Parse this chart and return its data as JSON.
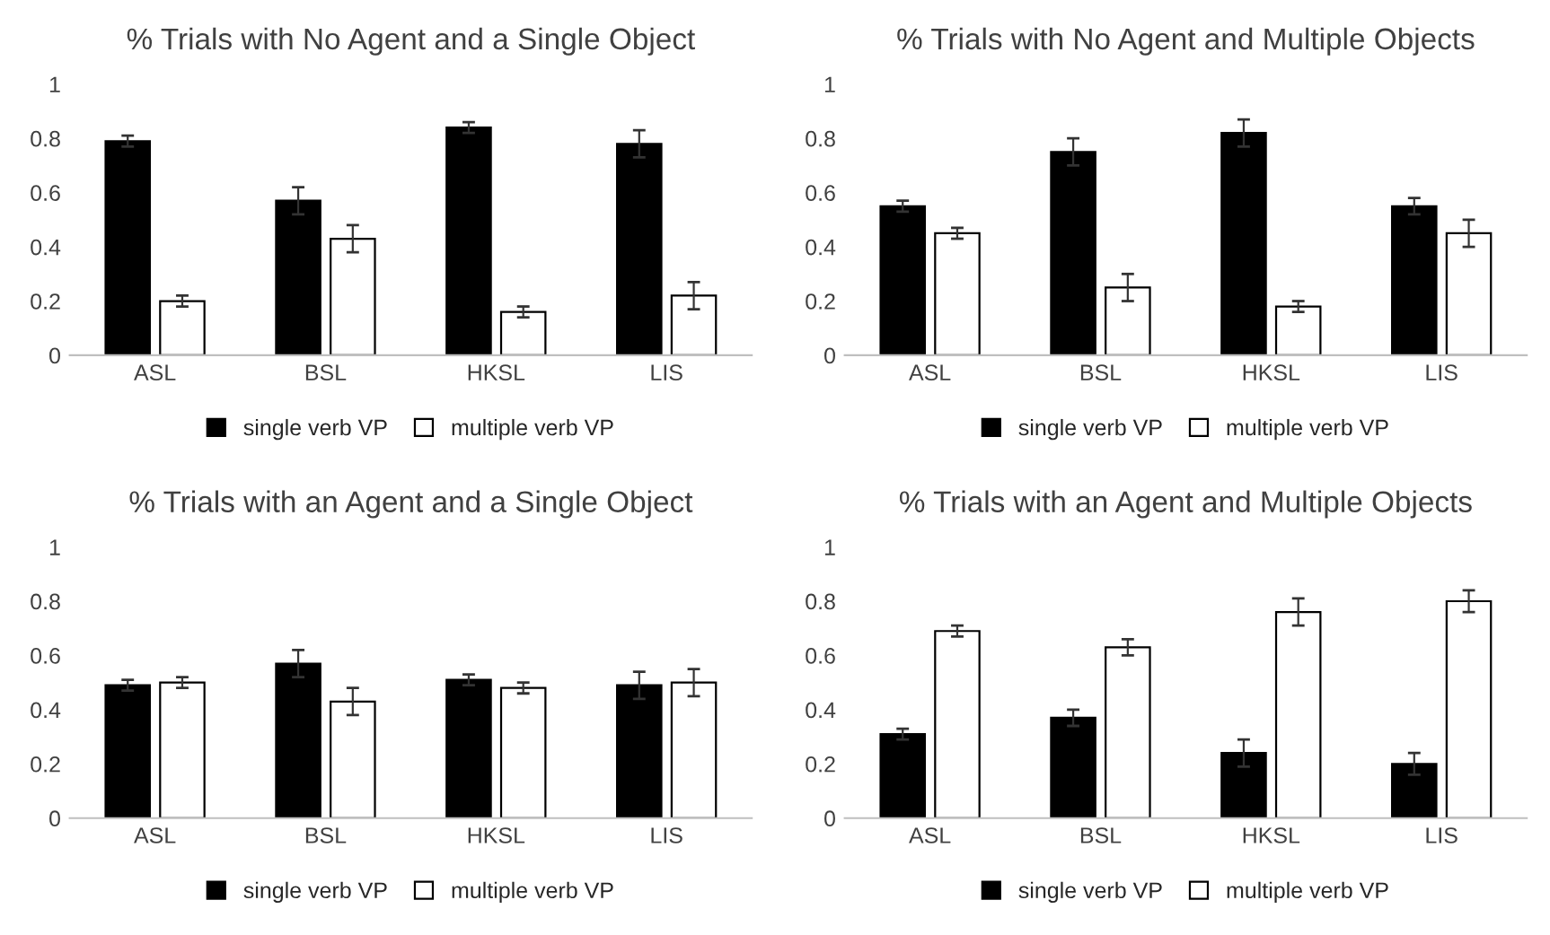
{
  "chart_data": [
    {
      "type": "bar",
      "title": "% Trials with No Agent and a Single Object",
      "categories": [
        "ASL",
        "BSL",
        "HKSL",
        "LIS"
      ],
      "ylim": [
        0,
        1
      ],
      "yticks": [
        0,
        0.2,
        0.4,
        0.6,
        0.8,
        1
      ],
      "grid": false,
      "legend": "bottom",
      "series": [
        {
          "name": "single verb VP",
          "color": "#000000",
          "values": [
            0.79,
            0.57,
            0.84,
            0.78
          ],
          "errors": [
            0.02,
            0.05,
            0.02,
            0.05
          ]
        },
        {
          "name": "multiple verb VP",
          "color": "#ffffff",
          "values": [
            0.2,
            0.43,
            0.16,
            0.22
          ],
          "errors": [
            0.02,
            0.05,
            0.02,
            0.05
          ]
        }
      ]
    },
    {
      "type": "bar",
      "title": "% Trials with No Agent and Multiple Objects",
      "categories": [
        "ASL",
        "BSL",
        "HKSL",
        "LIS"
      ],
      "ylim": [
        0,
        1
      ],
      "yticks": [
        0,
        0.2,
        0.4,
        0.6,
        0.8,
        1
      ],
      "grid": false,
      "legend": "bottom",
      "series": [
        {
          "name": "single verb VP",
          "color": "#000000",
          "values": [
            0.55,
            0.75,
            0.82,
            0.55
          ],
          "errors": [
            0.02,
            0.05,
            0.05,
            0.03
          ]
        },
        {
          "name": "multiple verb VP",
          "color": "#ffffff",
          "values": [
            0.45,
            0.25,
            0.18,
            0.45
          ],
          "errors": [
            0.02,
            0.05,
            0.02,
            0.05
          ]
        }
      ]
    },
    {
      "type": "bar",
      "title": "% Trials with an Agent and a Single Object",
      "categories": [
        "ASL",
        "BSL",
        "HKSL",
        "LIS"
      ],
      "ylim": [
        0,
        1
      ],
      "yticks": [
        0,
        0.2,
        0.4,
        0.6,
        0.8,
        1
      ],
      "grid": false,
      "legend": "bottom",
      "series": [
        {
          "name": "single verb VP",
          "color": "#000000",
          "values": [
            0.49,
            0.57,
            0.51,
            0.49
          ],
          "errors": [
            0.02,
            0.05,
            0.02,
            0.05
          ]
        },
        {
          "name": "multiple verb VP",
          "color": "#ffffff",
          "values": [
            0.5,
            0.43,
            0.48,
            0.5
          ],
          "errors": [
            0.02,
            0.05,
            0.02,
            0.05
          ]
        }
      ]
    },
    {
      "type": "bar",
      "title": "% Trials with an Agent and Multiple Objects",
      "categories": [
        "ASL",
        "BSL",
        "HKSL",
        "LIS"
      ],
      "ylim": [
        0,
        1
      ],
      "yticks": [
        0,
        0.2,
        0.4,
        0.6,
        0.8,
        1
      ],
      "grid": false,
      "legend": "bottom",
      "series": [
        {
          "name": "single verb VP",
          "color": "#000000",
          "values": [
            0.31,
            0.37,
            0.24,
            0.2
          ],
          "errors": [
            0.02,
            0.03,
            0.05,
            0.04
          ]
        },
        {
          "name": "multiple verb VP",
          "color": "#ffffff",
          "values": [
            0.69,
            0.63,
            0.76,
            0.8
          ],
          "errors": [
            0.02,
            0.03,
            0.05,
            0.04
          ]
        }
      ]
    }
  ]
}
